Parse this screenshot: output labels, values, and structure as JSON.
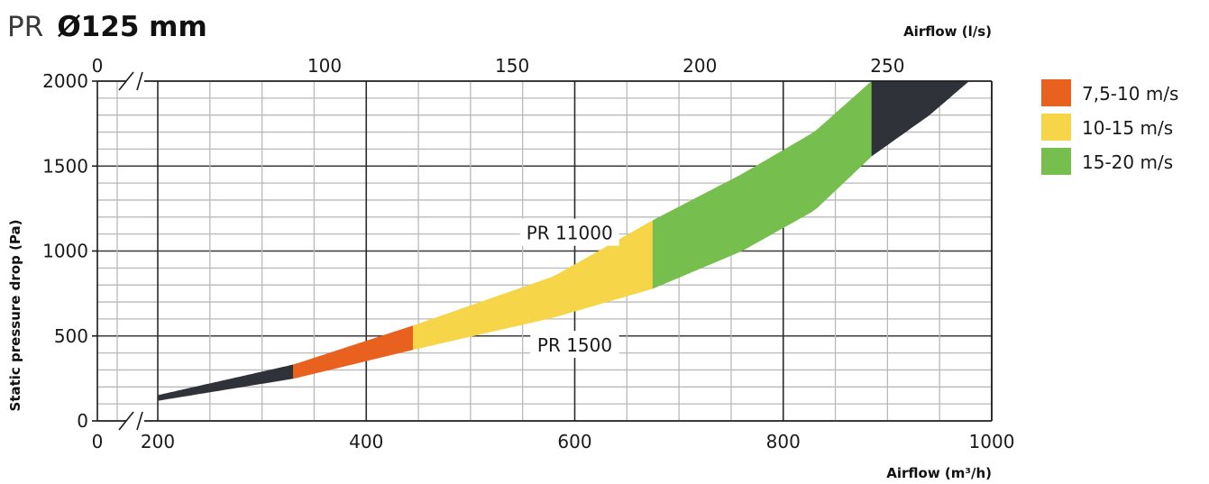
{
  "title": {
    "prefix": "PR",
    "main": "Ø125 mm"
  },
  "chart_data": {
    "type": "area",
    "x_bottom": {
      "label": "Airflow (m³/h)",
      "range": [
        200,
        1000
      ],
      "ticks": [
        200,
        400,
        600,
        800,
        1000
      ],
      "break_label": "0"
    },
    "x_top": {
      "label": "Airflow (l/s)",
      "ticks": [
        100,
        150,
        200,
        250
      ],
      "break_label": "0"
    },
    "y": {
      "label": "Static pressure drop (Pa)",
      "range": [
        0,
        2000
      ],
      "ticks": [
        0,
        500,
        1000,
        1500,
        2000
      ]
    },
    "grid": true,
    "curves": {
      "lower": {
        "label": "PR 1500",
        "points": [
          [
            200,
            120
          ],
          [
            330,
            250
          ],
          [
            445,
            420
          ],
          [
            580,
            610
          ],
          [
            675,
            780
          ],
          [
            760,
            1000
          ],
          [
            830,
            1240
          ],
          [
            885,
            1560
          ],
          [
            940,
            1800
          ],
          [
            978,
            2000
          ]
        ]
      },
      "upper": {
        "label": "PR 11000",
        "points": [
          [
            200,
            150
          ],
          [
            330,
            330
          ],
          [
            445,
            560
          ],
          [
            580,
            850
          ],
          [
            675,
            1180
          ],
          [
            760,
            1450
          ],
          [
            830,
            1700
          ],
          [
            885,
            2000
          ]
        ]
      }
    },
    "bands": [
      {
        "name": "",
        "color": "#2f3238",
        "x_from": 200,
        "x_to": 330
      },
      {
        "name": "7,5-10 m/s",
        "color": "#e8611e",
        "x_from": 330,
        "x_to": 445
      },
      {
        "name": "10-15 m/s",
        "color": "#f7d548",
        "x_from": 445,
        "x_to": 675
      },
      {
        "name": "15-20 m/s",
        "color": "#76bf4e",
        "x_from": 675,
        "x_to": 885
      },
      {
        "name": "",
        "color": "#2f3238",
        "x_from": 885,
        "x_to": 978
      }
    ],
    "legend": {
      "placement": "right-top",
      "entries": [
        {
          "label": "7,5-10 m/s",
          "color": "#e8611e"
        },
        {
          "label": "10-15 m/s",
          "color": "#f7d548"
        },
        {
          "label": "15-20 m/s",
          "color": "#76bf4e"
        }
      ]
    }
  }
}
